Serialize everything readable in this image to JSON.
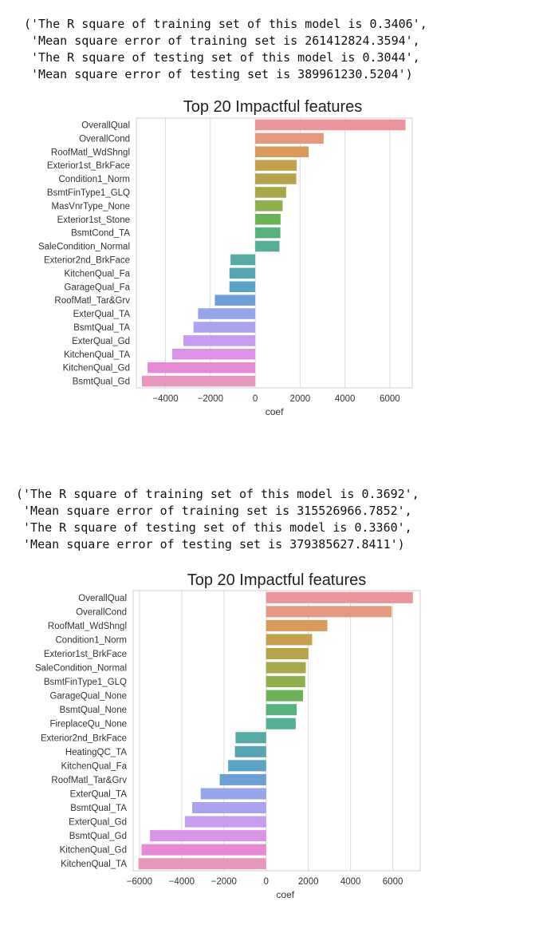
{
  "outputs": [
    {
      "lines": [
        "('The R square of training set of this model is 0.3406',",
        " 'Mean square error of training set is 261412824.3594',",
        " 'The R square of testing set of this model is 0.3044',",
        " 'Mean square error of testing set is 389961230.5204')"
      ]
    },
    {
      "lines": [
        "('The R square of training set of this model is 0.3692',",
        " 'Mean square error of training set is 315526966.7852',",
        " 'The R square of testing set of this model is 0.3360',",
        " 'Mean square error of testing set is 379385627.8411')"
      ]
    }
  ],
  "chart_data": [
    {
      "type": "bar",
      "orientation": "horizontal",
      "title": "Top 20 Impactful features",
      "xlabel": "coef",
      "ylabel": "",
      "xlim": [
        -5300,
        7000
      ],
      "xticks": [
        -4000,
        -2000,
        0,
        2000,
        4000,
        6000
      ],
      "xtick_labels": [
        "−4000",
        "−2000",
        "0",
        "2000",
        "4000",
        "6000"
      ],
      "grid": "vertical",
      "categories": [
        "OverallQual",
        "OverallCond",
        "RoofMatl_WdShngl",
        "Exterior1st_BrkFace",
        "Condition1_Norm",
        "BsmtFinType1_GLQ",
        "MasVnrType_None",
        "Exterior1st_Stone",
        "BsmtCond_TA",
        "SaleCondition_Normal",
        "Exterior2nd_BrkFace",
        "KitchenQual_Fa",
        "GarageQual_Fa",
        "RoofMatl_Tar&Grv",
        "ExterQual_TA",
        "BsmtQual_TA",
        "ExterQual_Gd",
        "KitchenQual_TA",
        "KitchenQual_Gd",
        "BsmtQual_Gd"
      ],
      "values": [
        6700,
        3050,
        2380,
        1850,
        1830,
        1380,
        1220,
        1130,
        1120,
        1080,
        -1100,
        -1150,
        -1150,
        -1800,
        -2550,
        -2750,
        -3200,
        -3700,
        -4800,
        -5050
      ],
      "colors": [
        "#e8959b",
        "#e49a7e",
        "#d99a5a",
        "#c5a04f",
        "#b6a44c",
        "#a6a84a",
        "#8faf4c",
        "#6cb158",
        "#57b17c",
        "#56ae96",
        "#55aaa4",
        "#56a5b3",
        "#5aa3c2",
        "#6c9fd6",
        "#96a5ea",
        "#aaa2ee",
        "#c59cef",
        "#db93e8",
        "#e68ad5",
        "#e797bd"
      ]
    },
    {
      "type": "bar",
      "orientation": "horizontal",
      "title": "Top 20 Impactful features",
      "xlabel": "coef",
      "ylabel": "",
      "xlim": [
        -6300,
        7300
      ],
      "xticks": [
        -6000,
        -4000,
        -2000,
        0,
        2000,
        4000,
        6000
      ],
      "xtick_labels": [
        "−6000",
        "−4000",
        "−2000",
        "0",
        "2000",
        "4000",
        "6000"
      ],
      "grid": "vertical",
      "categories": [
        "OverallQual",
        "OverallCond",
        "RoofMatl_WdShngl",
        "Condition1_Norm",
        "Exterior1st_BrkFace",
        "SaleCondition_Normal",
        "BsmtFinType1_GLQ",
        "GarageQual_None",
        "BsmtQual_None",
        "FireplaceQu_None",
        "Exterior2nd_BrkFace",
        "HeatingQC_TA",
        "KitchenQual_Fa",
        "RoofMatl_Tar&Grv",
        "ExterQual_TA",
        "BsmtQual_TA",
        "ExterQual_Gd",
        "BsmtQual_Gd",
        "KitchenQual_Gd",
        "KitchenQual_TA"
      ],
      "values": [
        6950,
        5950,
        2900,
        2180,
        2000,
        1880,
        1850,
        1750,
        1450,
        1400,
        -1450,
        -1480,
        -1800,
        -2200,
        -3100,
        -3500,
        -3850,
        -5500,
        -5900,
        -6050
      ],
      "colors": [
        "#e8959b",
        "#e49a7e",
        "#d99a5a",
        "#c5a04f",
        "#b6a44c",
        "#a6a84a",
        "#8faf4c",
        "#6cb158",
        "#57b17c",
        "#56ae96",
        "#55aaa4",
        "#56a5b3",
        "#5aa3c2",
        "#6c9fd6",
        "#96a5ea",
        "#aaa2ee",
        "#c59cef",
        "#db93e8",
        "#e68ad5",
        "#e797bd"
      ]
    }
  ]
}
